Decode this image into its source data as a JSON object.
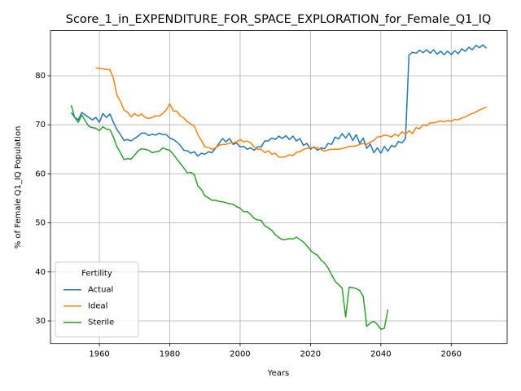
{
  "chart_data": {
    "type": "line",
    "title": "Score_1_in_EXPENDITURE_FOR_SPACE_EXPLORATION_for_Female_Q1_IQ",
    "x_label": "Years",
    "y_label": "% of Female Q1_IQ Population",
    "legend_title": "Fertility",
    "legend_position": "lower left",
    "grid": true,
    "xlim": [
      1946.1,
      2075.9
    ],
    "xticks": [
      1960,
      1980,
      2000,
      2020,
      2040,
      2060
    ],
    "ylim": [
      25.4,
      89.2
    ],
    "yticks": [
      30,
      40,
      50,
      60,
      70,
      80
    ],
    "series": [
      {
        "name": "Actual",
        "color": "#1f77b4",
        "x": [
          1952,
          1953,
          1954,
          1955,
          1956,
          1957,
          1958,
          1959,
          1960,
          1961,
          1962,
          1963,
          1964,
          1965,
          1966,
          1967,
          1968,
          1969,
          1970,
          1971,
          1972,
          1973,
          1974,
          1975,
          1976,
          1977,
          1978,
          1979,
          1980,
          1981,
          1982,
          1983,
          1984,
          1985,
          1986,
          1987,
          1988,
          1989,
          1990,
          1991,
          1992,
          1993,
          1994,
          1995,
          1996,
          1997,
          1998,
          1999,
          2000,
          2001,
          2002,
          2003,
          2004,
          2005,
          2006,
          2007,
          2008,
          2009,
          2010,
          2011,
          2012,
          2013,
          2014,
          2015,
          2016,
          2017,
          2018,
          2019,
          2020,
          2021,
          2022,
          2023,
          2024,
          2025,
          2026,
          2027,
          2028,
          2029,
          2030,
          2031,
          2032,
          2033,
          2034,
          2035,
          2036,
          2037,
          2038,
          2039,
          2040,
          2041,
          2042,
          2043,
          2044,
          2045,
          2046,
          2047,
          2048,
          2049,
          2050,
          2051,
          2052,
          2053,
          2054,
          2055,
          2056,
          2057,
          2058,
          2059,
          2060,
          2061,
          2062,
          2063,
          2064,
          2065,
          2066,
          2067,
          2068,
          2069,
          2070
        ],
        "values": [
          72.5,
          71.5,
          71,
          72.5,
          72,
          71.5,
          71,
          71.5,
          70.5,
          72.3,
          71.5,
          72.2,
          70.5,
          69,
          68,
          66.8,
          67,
          66.7,
          67.2,
          67.7,
          68.3,
          68.3,
          67.8,
          68.1,
          67.9,
          68.3,
          68,
          68,
          67.3,
          67,
          66.5,
          65.8,
          64.8,
          64.7,
          64.2,
          64.5,
          63.6,
          64.2,
          64,
          64.5,
          64.3,
          65.2,
          66.2,
          67.2,
          66.5,
          67.2,
          66,
          66.3,
          65.5,
          65.6,
          65,
          65.3,
          64.8,
          65.5,
          65.5,
          66.7,
          66.7,
          67.3,
          67,
          67.7,
          67.2,
          67.8,
          67,
          67.7,
          66.7,
          67.2,
          65.8,
          66.2,
          65,
          65.5,
          64.8,
          65.3,
          65.1,
          66.2,
          66,
          67.5,
          67.1,
          68.2,
          67.3,
          68.3,
          66.8,
          68,
          66.2,
          67.3,
          65.2,
          66.1,
          64.3,
          65.3,
          64.2,
          65.6,
          64.6,
          65.8,
          65.5,
          66.6,
          66.3,
          67.2,
          84.2,
          84.8,
          84.6,
          85.2,
          84.7,
          85.3,
          84.6,
          85.3,
          84.4,
          85,
          84.3,
          85,
          84.3,
          85.1,
          84.5,
          85.5,
          85,
          85.8,
          85.3,
          86.2,
          85.7,
          86.3,
          85.6
        ]
      },
      {
        "name": "Ideal",
        "color": "#ff7f0e",
        "x": [
          1959,
          1960,
          1961,
          1962,
          1963,
          1964,
          1965,
          1966,
          1967,
          1968,
          1969,
          1970,
          1971,
          1972,
          1973,
          1974,
          1975,
          1976,
          1977,
          1978,
          1979,
          1980,
          1981,
          1982,
          1983,
          1984,
          1985,
          1986,
          1987,
          1988,
          1989,
          1990,
          1991,
          1992,
          1993,
          1994,
          1995,
          1996,
          1997,
          1998,
          1999,
          2000,
          2001,
          2002,
          2003,
          2004,
          2005,
          2006,
          2007,
          2008,
          2009,
          2010,
          2011,
          2012,
          2013,
          2014,
          2015,
          2016,
          2017,
          2018,
          2019,
          2020,
          2021,
          2022,
          2023,
          2024,
          2025,
          2026,
          2027,
          2028,
          2029,
          2030,
          2031,
          2032,
          2033,
          2034,
          2035,
          2036,
          2037,
          2038,
          2039,
          2040,
          2041,
          2042,
          2043,
          2044,
          2045,
          2046,
          2047,
          2048,
          2049,
          2050,
          2051,
          2052,
          2053,
          2054,
          2055,
          2056,
          2057,
          2058,
          2059,
          2060,
          2061,
          2062,
          2063,
          2064,
          2065,
          2066,
          2067,
          2068,
          2069,
          2070
        ],
        "values": [
          81.6,
          81.5,
          81.4,
          81.3,
          81.2,
          79.5,
          76,
          74.8,
          73,
          72.6,
          71.6,
          72.3,
          71.8,
          72.2,
          71.5,
          71.3,
          71.5,
          71.8,
          71.8,
          72.3,
          73,
          74.3,
          72.8,
          72.8,
          71.8,
          71.4,
          70.6,
          70.2,
          69.7,
          68,
          66.8,
          65.5,
          65.4,
          65,
          65.3,
          65.8,
          66,
          66,
          66.3,
          66.3,
          66.5,
          67,
          66.5,
          66.7,
          66.3,
          65.5,
          65,
          65,
          64.3,
          64.7,
          64,
          64.2,
          63.4,
          63.4,
          63.5,
          63.9,
          63.7,
          64.4,
          64.5,
          65,
          65.2,
          65.3,
          65.3,
          65.3,
          65,
          64.6,
          64.9,
          65,
          65,
          65,
          65.2,
          65.3,
          65.6,
          65.6,
          65.7,
          66,
          66.2,
          66,
          66.5,
          66.8,
          67.5,
          67.6,
          67.9,
          67.8,
          67.5,
          68.1,
          67.7,
          68.6,
          68,
          68.8,
          68.2,
          69.4,
          69.2,
          70,
          69.8,
          70.4,
          70.4,
          70.6,
          70.8,
          70.6,
          70.9,
          70.7,
          71.1,
          71,
          71.4,
          71.6,
          72,
          72.3,
          72.6,
          73,
          73.3,
          73.6
        ]
      },
      {
        "name": "Sterile",
        "color": "#2ca02c",
        "x": [
          1952,
          1953,
          1954,
          1955,
          1956,
          1957,
          1958,
          1959,
          1960,
          1961,
          1962,
          1963,
          1964,
          1965,
          1966,
          1967,
          1968,
          1969,
          1970,
          1971,
          1972,
          1973,
          1974,
          1975,
          1976,
          1977,
          1978,
          1979,
          1980,
          1981,
          1982,
          1983,
          1984,
          1985,
          1986,
          1987,
          1988,
          1989,
          1990,
          1991,
          1992,
          1993,
          1994,
          1995,
          1996,
          1997,
          1998,
          1999,
          2000,
          2001,
          2002,
          2003,
          2004,
          2005,
          2006,
          2007,
          2008,
          2009,
          2010,
          2011,
          2012,
          2013,
          2014,
          2015,
          2016,
          2017,
          2018,
          2019,
          2020,
          2021,
          2022,
          2023,
          2024,
          2025,
          2026,
          2027,
          2028,
          2029,
          2030,
          2031,
          2032,
          2033,
          2034,
          2035,
          2036,
          2037,
          2038,
          2039,
          2040,
          2041,
          2042
        ],
        "values": [
          74,
          71.5,
          70.5,
          72,
          70.8,
          69.7,
          69.4,
          69.3,
          68.8,
          69.6,
          69.1,
          69,
          67.5,
          65.5,
          64.3,
          62.9,
          63.1,
          63,
          63.8,
          64.7,
          65.1,
          65,
          64.8,
          64.3,
          64.5,
          64.6,
          65.3,
          65,
          64.8,
          64,
          63,
          62.1,
          61.2,
          60.2,
          60.3,
          59.8,
          57.5,
          56.8,
          55.5,
          55.1,
          54.6,
          54.6,
          54.4,
          54.3,
          54.1,
          53.9,
          53.8,
          53.3,
          53,
          52.3,
          52.3,
          51.7,
          50.9,
          50.6,
          50.5,
          49.4,
          49,
          48.5,
          47.6,
          47,
          46.6,
          46.6,
          46.8,
          46.7,
          47.1,
          46.6,
          46.1,
          45.3,
          44.4,
          43.8,
          43.4,
          42.4,
          41.8,
          40.8,
          39.4,
          38.1,
          37.4,
          36.7,
          30.8,
          36.9,
          36.8,
          36.6,
          36.2,
          35,
          28.9,
          29.6,
          29.9,
          29.3,
          28.3,
          28.5,
          32.3
        ]
      }
    ]
  }
}
